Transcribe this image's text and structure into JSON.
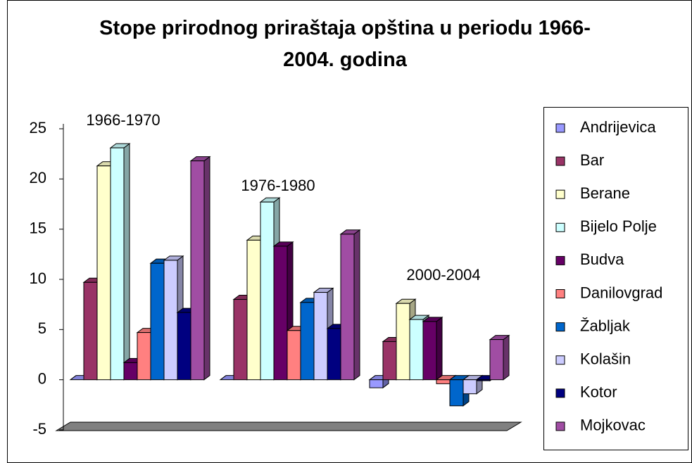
{
  "chart_data": {
    "type": "bar3d",
    "title": "Stope prirodnog priraštaja opština u periodu 1966-2004. godina",
    "categories": [
      "1966-1970",
      "1976-1980",
      "2000-2004"
    ],
    "series": [
      {
        "name": "Andrijevica",
        "color": "#9999ff",
        "values": [
          0,
          0,
          -0.8
        ]
      },
      {
        "name": "Bar",
        "color": "#993366",
        "values": [
          9.7,
          8.0,
          3.8
        ]
      },
      {
        "name": "Berane",
        "color": "#ffffcc",
        "values": [
          21.3,
          13.9,
          7.6
        ]
      },
      {
        "name": "Bijelo Polje",
        "color": "#ccffff",
        "values": [
          23.1,
          17.7,
          6.0
        ]
      },
      {
        "name": "Budva",
        "color": "#660066",
        "values": [
          1.7,
          13.3,
          5.8
        ]
      },
      {
        "name": "Danilovgrad",
        "color": "#ff8080",
        "values": [
          4.7,
          4.9,
          -0.4
        ]
      },
      {
        "name": "Žabljak",
        "color": "#0066cc",
        "values": [
          11.6,
          7.7,
          -2.6
        ]
      },
      {
        "name": "Kolašin",
        "color": "#ccccff",
        "values": [
          11.9,
          8.7,
          -1.4
        ]
      },
      {
        "name": "Kotor",
        "color": "#000080",
        "values": [
          6.7,
          5.1,
          -0.1
        ]
      },
      {
        "name": "Mojkovac",
        "color": "#a04da3",
        "values": [
          21.8,
          14.5,
          4.0
        ]
      }
    ],
    "ylim": [
      -5,
      25
    ],
    "yticks": [
      -5,
      0,
      5,
      10,
      15,
      20,
      25
    ],
    "grid": false,
    "legend": "right"
  }
}
